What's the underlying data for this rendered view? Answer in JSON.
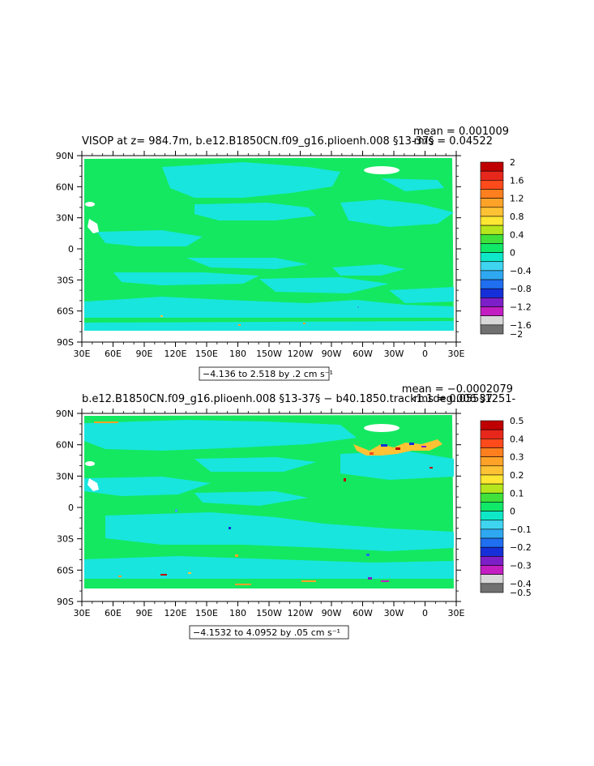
{
  "chart_data": [
    {
      "type": "heatmap",
      "title": "VISOP at z= 984.7m, b.e12.B1850CN.f09_g16.plioenh.008 §13-37§",
      "stats": {
        "mean": "mean = 0.001009",
        "rms": "rms = 0.04522"
      },
      "range_label": "−4.136 to 2.518 by .2 cm s⁻¹",
      "x_ticks": [
        "30E",
        "60E",
        "90E",
        "120E",
        "150E",
        "180",
        "150W",
        "120W",
        "90W",
        "60W",
        "30W",
        "0",
        "30E"
      ],
      "y_ticks": [
        "90N",
        "60N",
        "30N",
        "0",
        "30S",
        "60S",
        "90S"
      ],
      "colorbar": {
        "labels": [
          "2",
          "1.6",
          "1.2",
          "0.8",
          "0.4",
          "0",
          "−0.4",
          "−0.8",
          "−1.2",
          "−1.6",
          "−2"
        ],
        "colors": [
          "#c00000",
          "#e8271c",
          "#ff4a1c",
          "#ff7f1f",
          "#ffa228",
          "#ffc234",
          "#ffe633",
          "#b5e61d",
          "#3fe13a",
          "#10e868",
          "#0fe8c8",
          "#3fd4f0",
          "#2fa8f2",
          "#1f6ff0",
          "#1530d8",
          "#7d1fc8",
          "#c21ec2",
          "#d8d8d8",
          "#707070"
        ]
      },
      "background_color": "#14e860",
      "highlight_color": "#18e5dd"
    },
    {
      "type": "heatmap",
      "title": "b.e12.B1850CN.f09_g16.plioenh.008 §13-37§ − b40.1850.track1.1deg.006 §1251-",
      "stats": {
        "mean": "mean = −0.0002079",
        "rms": "rms = 0.05537"
      },
      "range_label": "−4.1532 to 4.0952 by .05 cm s⁻¹",
      "x_ticks": [
        "30E",
        "60E",
        "90E",
        "120E",
        "150E",
        "180",
        "150W",
        "120W",
        "90W",
        "60W",
        "30W",
        "0",
        "30E"
      ],
      "y_ticks": [
        "90N",
        "60N",
        "30N",
        "0",
        "30S",
        "60S",
        "90S"
      ],
      "colorbar": {
        "labels": [
          "0.5",
          "0.4",
          "0.3",
          "0.2",
          "0.1",
          "0",
          "−0.1",
          "−0.2",
          "−0.3",
          "−0.4",
          "−0.5"
        ],
        "colors": [
          "#c00000",
          "#e8271c",
          "#ff4a1c",
          "#ff7f1f",
          "#ffa228",
          "#ffc234",
          "#ffe633",
          "#b5e61d",
          "#3fe13a",
          "#10e868",
          "#0fe8c8",
          "#3fd4f0",
          "#2fa8f2",
          "#1f6ff0",
          "#1530d8",
          "#7d1fc8",
          "#c21ec2",
          "#d8d8d8",
          "#707070"
        ]
      },
      "background_color": "#14e860",
      "highlight_color": "#18e5dd"
    }
  ]
}
